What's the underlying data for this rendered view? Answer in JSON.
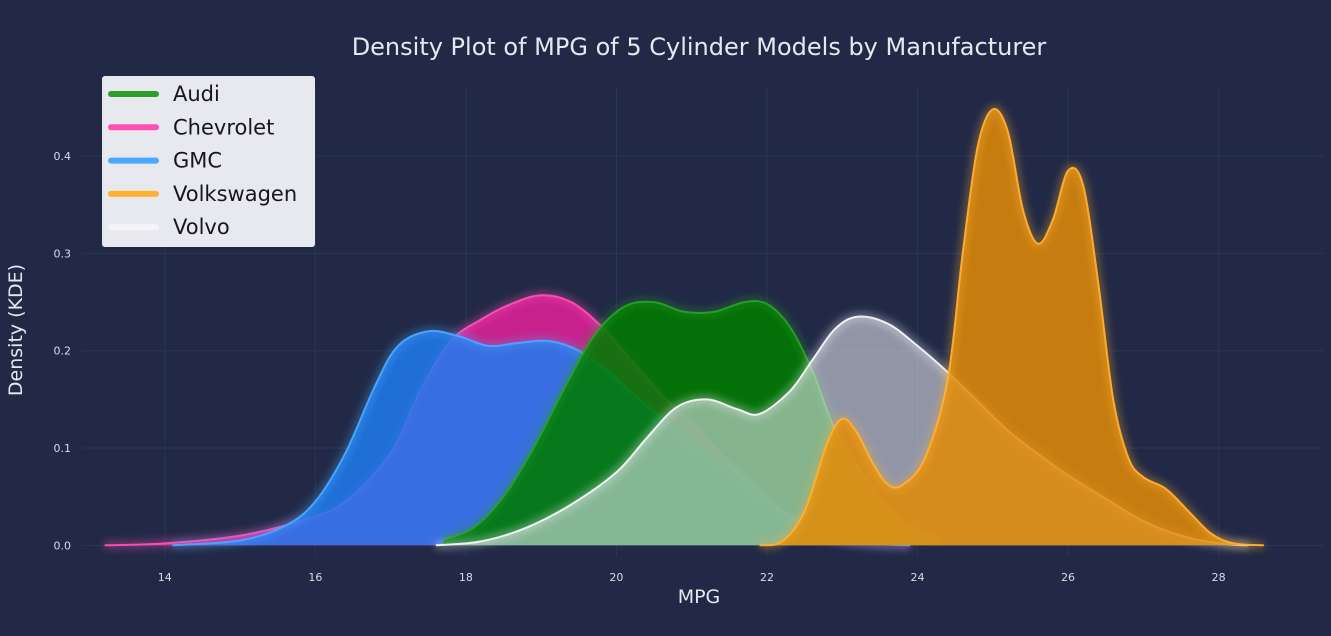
{
  "chart_data": {
    "type": "area",
    "title": "Density Plot of MPG of 5 Cylinder Models by Manufacturer",
    "xlabel": "MPG",
    "ylabel": "Density (KDE)",
    "xlim": [
      12.9,
      29.4
    ],
    "ylim": [
      -0.012,
      0.47
    ],
    "xticks": [
      14,
      16,
      18,
      20,
      22,
      24,
      26,
      28
    ],
    "yticks": [
      0.0,
      0.1,
      0.2,
      0.3,
      0.4
    ],
    "x_tick_labels": [
      "14",
      "16",
      "18",
      "20",
      "22",
      "24",
      "26",
      "28"
    ],
    "y_tick_labels": [
      "0.0",
      "0.1",
      "0.2",
      "0.3",
      "0.4"
    ],
    "grid": true,
    "legend_position": "top-left",
    "series": [
      {
        "name": "Chevrolet",
        "color": "#ff4fb4",
        "fill": "#ff1fa6",
        "fill_opacity": 0.75,
        "points": [
          [
            13.2,
            0.0
          ],
          [
            14.0,
            0.002
          ],
          [
            15.0,
            0.01
          ],
          [
            15.8,
            0.025
          ],
          [
            16.4,
            0.045
          ],
          [
            17.0,
            0.095
          ],
          [
            17.4,
            0.16
          ],
          [
            17.8,
            0.21
          ],
          [
            18.2,
            0.232
          ],
          [
            18.6,
            0.248
          ],
          [
            19.0,
            0.257
          ],
          [
            19.4,
            0.25
          ],
          [
            19.8,
            0.225
          ],
          [
            20.2,
            0.19
          ],
          [
            20.6,
            0.155
          ],
          [
            21.0,
            0.125
          ],
          [
            21.4,
            0.092
          ],
          [
            21.8,
            0.062
          ],
          [
            22.2,
            0.036
          ],
          [
            22.6,
            0.016
          ],
          [
            23.0,
            0.006
          ],
          [
            23.6,
            0.001
          ],
          [
            23.9,
            0.0
          ]
        ]
      },
      {
        "name": "GMC",
        "color": "#4aa8ff",
        "fill": "#1e7bf0",
        "fill_opacity": 0.85,
        "points": [
          [
            14.1,
            0.0
          ],
          [
            15.0,
            0.005
          ],
          [
            15.6,
            0.02
          ],
          [
            16.0,
            0.045
          ],
          [
            16.4,
            0.095
          ],
          [
            16.8,
            0.165
          ],
          [
            17.1,
            0.205
          ],
          [
            17.5,
            0.22
          ],
          [
            17.9,
            0.215
          ],
          [
            18.3,
            0.205
          ],
          [
            18.7,
            0.208
          ],
          [
            19.1,
            0.21
          ],
          [
            19.5,
            0.2
          ],
          [
            19.9,
            0.178
          ],
          [
            20.3,
            0.15
          ],
          [
            20.7,
            0.125
          ],
          [
            21.1,
            0.1
          ],
          [
            21.5,
            0.08
          ],
          [
            21.9,
            0.056
          ],
          [
            22.3,
            0.028
          ],
          [
            22.7,
            0.011
          ],
          [
            23.2,
            0.003
          ],
          [
            23.9,
            0.0
          ]
        ]
      },
      {
        "name": "Audi",
        "color": "#2a9f2a",
        "fill": "#007a00",
        "fill_opacity": 0.88,
        "points": [
          [
            17.7,
            0.006
          ],
          [
            18.1,
            0.018
          ],
          [
            18.5,
            0.05
          ],
          [
            18.9,
            0.1
          ],
          [
            19.3,
            0.16
          ],
          [
            19.7,
            0.215
          ],
          [
            20.1,
            0.245
          ],
          [
            20.5,
            0.25
          ],
          [
            20.9,
            0.24
          ],
          [
            21.3,
            0.24
          ],
          [
            21.7,
            0.25
          ],
          [
            22.0,
            0.248
          ],
          [
            22.3,
            0.225
          ],
          [
            22.6,
            0.18
          ],
          [
            22.9,
            0.12
          ],
          [
            23.3,
            0.07
          ],
          [
            23.7,
            0.03
          ],
          [
            24.0,
            0.014
          ],
          [
            24.3,
            0.007
          ]
        ]
      },
      {
        "name": "Volvo",
        "color": "#f4f4f8",
        "fill": "#e4e6ee",
        "fill_opacity": 0.58,
        "points": [
          [
            17.6,
            0.0
          ],
          [
            18.2,
            0.004
          ],
          [
            18.8,
            0.018
          ],
          [
            19.4,
            0.042
          ],
          [
            20.0,
            0.075
          ],
          [
            20.4,
            0.11
          ],
          [
            20.8,
            0.142
          ],
          [
            21.2,
            0.15
          ],
          [
            21.6,
            0.14
          ],
          [
            21.9,
            0.135
          ],
          [
            22.3,
            0.158
          ],
          [
            22.6,
            0.19
          ],
          [
            22.9,
            0.222
          ],
          [
            23.2,
            0.235
          ],
          [
            23.6,
            0.228
          ],
          [
            24.0,
            0.205
          ],
          [
            24.4,
            0.178
          ],
          [
            24.8,
            0.148
          ],
          [
            25.2,
            0.118
          ],
          [
            25.6,
            0.094
          ],
          [
            26.0,
            0.072
          ],
          [
            26.5,
            0.048
          ],
          [
            27.0,
            0.025
          ],
          [
            27.5,
            0.01
          ],
          [
            28.0,
            0.002
          ],
          [
            28.4,
            0.0
          ]
        ]
      },
      {
        "name": "Volkswagen",
        "color": "#ffb030",
        "fill": "#e28b06",
        "fill_opacity": 0.86,
        "points": [
          [
            21.9,
            0.0
          ],
          [
            22.2,
            0.004
          ],
          [
            22.5,
            0.035
          ],
          [
            22.8,
            0.105
          ],
          [
            23.0,
            0.13
          ],
          [
            23.2,
            0.115
          ],
          [
            23.4,
            0.085
          ],
          [
            23.6,
            0.063
          ],
          [
            23.8,
            0.062
          ],
          [
            24.1,
            0.09
          ],
          [
            24.4,
            0.17
          ],
          [
            24.6,
            0.3
          ],
          [
            24.8,
            0.41
          ],
          [
            25.0,
            0.448
          ],
          [
            25.2,
            0.425
          ],
          [
            25.4,
            0.345
          ],
          [
            25.6,
            0.31
          ],
          [
            25.8,
            0.335
          ],
          [
            26.0,
            0.385
          ],
          [
            26.2,
            0.37
          ],
          [
            26.4,
            0.27
          ],
          [
            26.6,
            0.15
          ],
          [
            26.8,
            0.09
          ],
          [
            27.0,
            0.07
          ],
          [
            27.3,
            0.058
          ],
          [
            27.6,
            0.035
          ],
          [
            27.9,
            0.012
          ],
          [
            28.2,
            0.002
          ],
          [
            28.6,
            0.0
          ]
        ]
      }
    ],
    "legend_order": [
      "Audi",
      "Chevrolet",
      "GMC",
      "Volkswagen",
      "Volvo"
    ]
  }
}
